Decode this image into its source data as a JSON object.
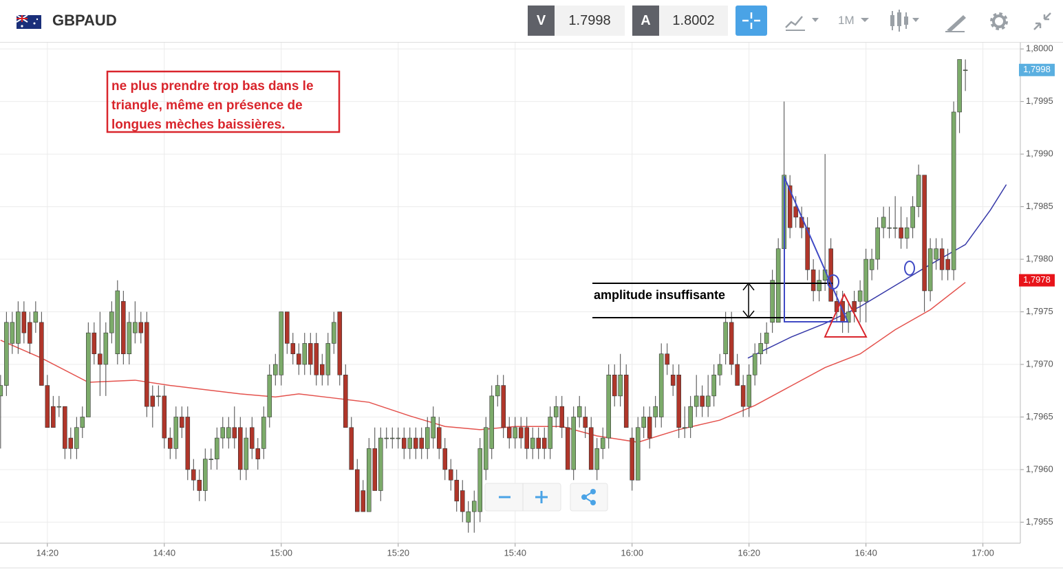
{
  "toolbar": {
    "symbol": "GBPAUD",
    "bid_label": "V",
    "bid": "1.7998",
    "ask_label": "A",
    "ask": "1.8002",
    "timeframe": "1M"
  },
  "chart_data": {
    "type": "candlestick",
    "xlim": [
      851.9,
      1026.4
    ],
    "ylim": [
      1.7953,
      1.80006
    ],
    "grid": true,
    "xticks": [
      {
        "value": 860,
        "label": "14:20"
      },
      {
        "value": 880,
        "label": "14:40"
      },
      {
        "value": 900,
        "label": "15:00"
      },
      {
        "value": 920,
        "label": "15:20"
      },
      {
        "value": 940,
        "label": "15:40"
      },
      {
        "value": 960,
        "label": "16:00"
      },
      {
        "value": 980,
        "label": "16:20"
      },
      {
        "value": 1000,
        "label": "16:40"
      },
      {
        "value": 1020,
        "label": "17:00"
      }
    ],
    "yticks": [
      {
        "value": 1.7955,
        "label": "1,7955"
      },
      {
        "value": 1.796,
        "label": "1,7960"
      },
      {
        "value": 1.7965,
        "label": "1,7965"
      },
      {
        "value": 1.797,
        "label": "1,7970"
      },
      {
        "value": 1.7975,
        "label": "1,7975"
      },
      {
        "value": 1.798,
        "label": "1,7980"
      },
      {
        "value": 1.7985,
        "label": "1,7985"
      },
      {
        "value": 1.799,
        "label": "1,7990"
      },
      {
        "value": 1.7995,
        "label": "1,7995"
      },
      {
        "value": 1.8,
        "label": "1,8000"
      }
    ],
    "up_color": "#7cab6a",
    "down_color": "#b0362a",
    "candles": {
      "x": [
        852,
        853,
        854,
        855,
        856,
        857,
        858,
        859,
        860,
        861,
        862,
        863,
        864,
        865,
        866,
        867,
        868,
        869,
        870,
        871,
        872,
        873,
        874,
        875,
        876,
        877,
        878,
        879,
        880,
        881,
        882,
        883,
        884,
        885,
        886,
        887,
        888,
        889,
        890,
        891,
        892,
        893,
        894,
        895,
        896,
        897,
        898,
        899,
        900,
        901,
        902,
        903,
        904,
        905,
        906,
        907,
        908,
        909,
        910,
        911,
        912,
        913,
        914,
        915,
        916,
        917,
        918,
        919,
        920,
        921,
        922,
        923,
        924,
        925,
        926,
        927,
        928,
        929,
        930,
        931,
        932,
        933,
        934,
        935,
        936,
        937,
        938,
        939,
        940,
        941,
        942,
        943,
        944,
        945,
        946,
        947,
        948,
        949,
        950,
        951,
        952,
        953,
        954,
        955,
        956,
        957,
        958,
        959,
        960,
        961,
        962,
        963,
        964,
        965,
        966,
        967,
        968,
        969,
        970,
        971,
        972,
        973,
        974,
        975,
        976,
        977,
        978,
        979,
        980,
        981,
        982,
        983,
        984,
        985,
        986,
        987,
        988,
        989,
        990,
        991,
        992,
        993,
        994,
        995,
        996,
        997,
        998,
        999,
        1000,
        1001,
        1002,
        1003,
        1004,
        1005,
        1006,
        1007,
        1008,
        1009,
        1010,
        1011,
        1012,
        1013,
        1014,
        1015,
        1016,
        1017
      ],
      "open": [
        1.7967,
        1.7968,
        1.7972,
        1.7972,
        1.7975,
        1.7974,
        1.7974,
        1.7974,
        1.7968,
        1.7966,
        1.7966,
        1.7966,
        1.7963,
        1.7962,
        1.7964,
        1.7965,
        1.7973,
        1.7971,
        1.797,
        1.7973,
        1.7971,
        1.7976,
        1.7971,
        1.7973,
        1.7974,
        1.7974,
        1.7967,
        1.7967,
        1.7967,
        1.7963,
        1.7962,
        1.7965,
        1.7965,
        1.796,
        1.7959,
        1.7958,
        1.7961,
        1.7961,
        1.7963,
        1.7963,
        1.7964,
        1.7964,
        1.796,
        1.7964,
        1.7962,
        1.7962,
        1.7965,
        1.7969,
        1.7969,
        1.7975,
        1.7972,
        1.7971,
        1.797,
        1.7972,
        1.7972,
        1.797,
        1.7969,
        1.7972,
        1.7975,
        1.7969,
        1.7964,
        1.796,
        1.7958,
        1.7956,
        1.7962,
        1.7958,
        1.7963,
        1.7963,
        1.7963,
        1.7963,
        1.7962,
        1.7963,
        1.7963,
        1.7962,
        1.7963,
        1.7964,
        1.7962,
        1.796,
        1.7959,
        1.7958,
        1.7955,
        1.7956,
        1.7956,
        1.796,
        1.7962,
        1.7967,
        1.7968,
        1.7964,
        1.7963,
        1.7964,
        1.7964,
        1.7962,
        1.7963,
        1.7963,
        1.7962,
        1.7965,
        1.7966,
        1.7964,
        1.796,
        1.7965,
        1.7965,
        1.7964,
        1.796,
        1.7962,
        1.7963,
        1.7969,
        1.7967,
        1.7969,
        1.7963,
        1.7959,
        1.7964,
        1.7965,
        1.7965,
        1.7965,
        1.7971,
        1.7969,
        1.7969,
        1.7964,
        1.7964,
        1.7966,
        1.7967,
        1.7966,
        1.7967,
        1.7969,
        1.7971,
        1.7974,
        1.797,
        1.7968,
        1.7966,
        1.7969,
        1.7971,
        1.7972,
        1.7974,
        1.7974,
        1.7981,
        1.7987,
        1.7985,
        1.7984,
        1.7983,
        1.7979,
        1.7977,
        1.7978,
        1.7981,
        1.7976,
        1.7976,
        1.7974,
        1.7976,
        1.7976,
        1.7976,
        1.7979,
        1.798,
        1.7983,
        1.7983,
        1.7983,
        1.7983,
        1.7982,
        1.7983,
        1.7985,
        1.7988,
        1.7977,
        1.798,
        1.7981,
        1.798,
        1.7979,
        1.7994,
        1.7998
      ],
      "high": [
        1.7969,
        1.7975,
        1.7975,
        1.7976,
        1.7976,
        1.7975,
        1.7976,
        1.7975,
        1.7969,
        1.7967,
        1.7967,
        1.7966,
        1.7964,
        1.7965,
        1.7966,
        1.7974,
        1.7974,
        1.7975,
        1.7974,
        1.7976,
        1.7978,
        1.7977,
        1.7975,
        1.7976,
        1.7975,
        1.7975,
        1.7968,
        1.7968,
        1.7968,
        1.7964,
        1.7966,
        1.7966,
        1.7966,
        1.7961,
        1.796,
        1.7962,
        1.7962,
        1.7964,
        1.7965,
        1.7965,
        1.7966,
        1.7965,
        1.7964,
        1.7965,
        1.7963,
        1.7966,
        1.797,
        1.7971,
        1.7975,
        1.7975,
        1.7973,
        1.7972,
        1.7973,
        1.7973,
        1.7973,
        1.7971,
        1.7973,
        1.7975,
        1.7975,
        1.797,
        1.7965,
        1.7961,
        1.7959,
        1.7963,
        1.7964,
        1.7964,
        1.7964,
        1.7964,
        1.7964,
        1.7964,
        1.7964,
        1.7964,
        1.7964,
        1.7965,
        1.7966,
        1.7965,
        1.7963,
        1.7961,
        1.796,
        1.7959,
        1.7957,
        1.7958,
        1.7963,
        1.7965,
        1.7968,
        1.7969,
        1.7969,
        1.7965,
        1.7965,
        1.7965,
        1.7965,
        1.7964,
        1.7964,
        1.7964,
        1.7966,
        1.7967,
        1.7967,
        1.7965,
        1.7966,
        1.7967,
        1.7966,
        1.7965,
        1.7963,
        1.7964,
        1.797,
        1.797,
        1.7971,
        1.797,
        1.7964,
        1.7965,
        1.7966,
        1.7966,
        1.7967,
        1.7972,
        1.7972,
        1.797,
        1.797,
        1.7966,
        1.7967,
        1.7969,
        1.7968,
        1.7969,
        1.797,
        1.7971,
        1.7975,
        1.7975,
        1.7971,
        1.7969,
        1.797,
        1.7972,
        1.7973,
        1.7974,
        1.7979,
        1.7982,
        1.7995,
        1.7988,
        1.7986,
        1.7985,
        1.7984,
        1.798,
        1.7979,
        1.799,
        1.7982,
        1.7977,
        1.7977,
        1.7976,
        1.7977,
        1.7978,
        1.7981,
        1.7981,
        1.7984,
        1.7985,
        1.7985,
        1.7986,
        1.7985,
        1.7984,
        1.7986,
        1.7989,
        1.7988,
        1.7982,
        1.7982,
        1.7982,
        1.7981,
        1.7995,
        1.7999,
        1.7999
      ],
      "low": [
        1.7962,
        1.7967,
        1.7971,
        1.7971,
        1.7972,
        1.7971,
        1.7973,
        1.7968,
        1.7964,
        1.7964,
        1.7965,
        1.7961,
        1.7961,
        1.7961,
        1.7963,
        1.7965,
        1.797,
        1.7967,
        1.7967,
        1.7972,
        1.797,
        1.797,
        1.797,
        1.7972,
        1.7972,
        1.7965,
        1.7964,
        1.7966,
        1.7962,
        1.7961,
        1.7961,
        1.7963,
        1.7959,
        1.7958,
        1.7957,
        1.7957,
        1.796,
        1.796,
        1.7962,
        1.7962,
        1.7962,
        1.7959,
        1.7959,
        1.7961,
        1.796,
        1.7961,
        1.7964,
        1.7968,
        1.7968,
        1.7971,
        1.797,
        1.7969,
        1.7969,
        1.7969,
        1.7968,
        1.7968,
        1.7968,
        1.7971,
        1.7968,
        1.7964,
        1.796,
        1.7956,
        1.7956,
        1.7956,
        1.7958,
        1.7957,
        1.7962,
        1.7962,
        1.7962,
        1.7961,
        1.7961,
        1.7961,
        1.7961,
        1.7961,
        1.7962,
        1.7961,
        1.7959,
        1.7958,
        1.7956,
        1.7955,
        1.7954,
        1.7954,
        1.7955,
        1.7959,
        1.7961,
        1.7966,
        1.7963,
        1.7962,
        1.7962,
        1.7962,
        1.7961,
        1.7961,
        1.7961,
        1.7961,
        1.7961,
        1.7964,
        1.7963,
        1.796,
        1.7959,
        1.7964,
        1.7963,
        1.796,
        1.7959,
        1.7961,
        1.7962,
        1.7966,
        1.7966,
        1.7964,
        1.7958,
        1.7959,
        1.7963,
        1.7962,
        1.7964,
        1.7964,
        1.7969,
        1.7967,
        1.7963,
        1.7963,
        1.7963,
        1.7965,
        1.7965,
        1.7965,
        1.7966,
        1.7968,
        1.797,
        1.7969,
        1.7968,
        1.7965,
        1.7965,
        1.7968,
        1.797,
        1.7971,
        1.7973,
        1.7974,
        1.798,
        1.7982,
        1.7983,
        1.7982,
        1.7978,
        1.7976,
        1.7976,
        1.7977,
        1.7976,
        1.7974,
        1.7973,
        1.7973,
        1.7974,
        1.7974,
        1.7974,
        1.7978,
        1.7979,
        1.7982,
        1.7982,
        1.7982,
        1.7981,
        1.7981,
        1.7982,
        1.7984,
        1.7975,
        1.7976,
        1.7979,
        1.7978,
        1.7978,
        1.7978,
        1.7992,
        1.7996
      ],
      "close": [
        1.7968,
        1.7974,
        1.7974,
        1.7975,
        1.7973,
        1.7972,
        1.7975,
        1.7968,
        1.7964,
        1.7964,
        1.7966,
        1.7962,
        1.7962,
        1.7964,
        1.7965,
        1.7973,
        1.7971,
        1.797,
        1.7973,
        1.7975,
        1.7977,
        1.7971,
        1.7974,
        1.7974,
        1.7973,
        1.7966,
        1.7966,
        1.7967,
        1.7963,
        1.7962,
        1.7965,
        1.7964,
        1.796,
        1.7959,
        1.7958,
        1.7961,
        1.7961,
        1.7963,
        1.7964,
        1.7964,
        1.7963,
        1.796,
        1.7963,
        1.7962,
        1.7961,
        1.7965,
        1.7969,
        1.797,
        1.7975,
        1.7972,
        1.7971,
        1.797,
        1.7972,
        1.797,
        1.7969,
        1.7969,
        1.7972,
        1.7974,
        1.7969,
        1.7964,
        1.796,
        1.7956,
        1.7956,
        1.7962,
        1.7958,
        1.7963,
        1.7963,
        1.7963,
        1.7963,
        1.7962,
        1.7963,
        1.7962,
        1.7962,
        1.7964,
        1.7965,
        1.7962,
        1.796,
        1.7959,
        1.7957,
        1.7956,
        1.7956,
        1.7957,
        1.7962,
        1.7964,
        1.7967,
        1.7968,
        1.7964,
        1.7963,
        1.7964,
        1.7963,
        1.7962,
        1.7963,
        1.7962,
        1.7962,
        1.7965,
        1.7966,
        1.7964,
        1.796,
        1.7965,
        1.7966,
        1.7964,
        1.796,
        1.7962,
        1.7963,
        1.7969,
        1.7967,
        1.7969,
        1.7964,
        1.7959,
        1.7964,
        1.7965,
        1.7963,
        1.7966,
        1.7971,
        1.797,
        1.7968,
        1.7964,
        1.7964,
        1.7966,
        1.7967,
        1.7966,
        1.7967,
        1.7969,
        1.797,
        1.7974,
        1.797,
        1.7968,
        1.7966,
        1.7969,
        1.7971,
        1.7972,
        1.7973,
        1.7978,
        1.7981,
        1.7988,
        1.7983,
        1.7984,
        1.7983,
        1.7979,
        1.7977,
        1.7978,
        1.7979,
        1.7976,
        1.7975,
        1.7974,
        1.7975,
        1.7975,
        1.7977,
        1.798,
        1.798,
        1.7983,
        1.7984,
        1.7983,
        1.7983,
        1.7982,
        1.7983,
        1.7985,
        1.7988,
        1.7977,
        1.7981,
        1.7981,
        1.7979,
        1.7979,
        1.7994,
        1.7999,
        1.7998
      ]
    },
    "lines": [
      {
        "color": "#e4514c",
        "x": [
          852,
          859,
          867,
          875,
          881,
          887,
          893,
          899,
          903,
          909,
          915,
          922,
          928,
          934,
          940,
          948,
          954,
          961,
          968,
          975,
          981,
          987,
          993,
          999,
          1005,
          1011,
          1017
        ],
        "values": [
          1.79723,
          1.79706,
          1.79683,
          1.79685,
          1.7968,
          1.79676,
          1.79672,
          1.79669,
          1.79672,
          1.79668,
          1.79664,
          1.79651,
          1.79641,
          1.79638,
          1.79641,
          1.79641,
          1.79632,
          1.79626,
          1.79638,
          1.79647,
          1.79661,
          1.79679,
          1.79697,
          1.7971,
          1.79733,
          1.79752,
          1.79778
        ]
      },
      {
        "color": "#3538a8",
        "x": [
          979.8,
          987.2,
          993,
          999,
          1005,
          1011,
          1017,
          1021.3,
          1024
        ],
        "values": [
          1.79706,
          1.79726,
          1.79739,
          1.79755,
          1.79775,
          1.79795,
          1.79814,
          1.79847,
          1.79871
        ]
      }
    ],
    "price_tags": [
      {
        "value": 1.7998,
        "label": "1,7998",
        "color": "#5aafe0"
      },
      {
        "value": 1.7978,
        "label": "1,7978",
        "color": "#e8141a"
      }
    ],
    "annotations": {
      "note": [
        "ne plus prendre trop bas dans le",
        "triangle, même en présence de",
        "longues mèches baissières."
      ],
      "amplitude": "amplitude insuffisante"
    }
  }
}
